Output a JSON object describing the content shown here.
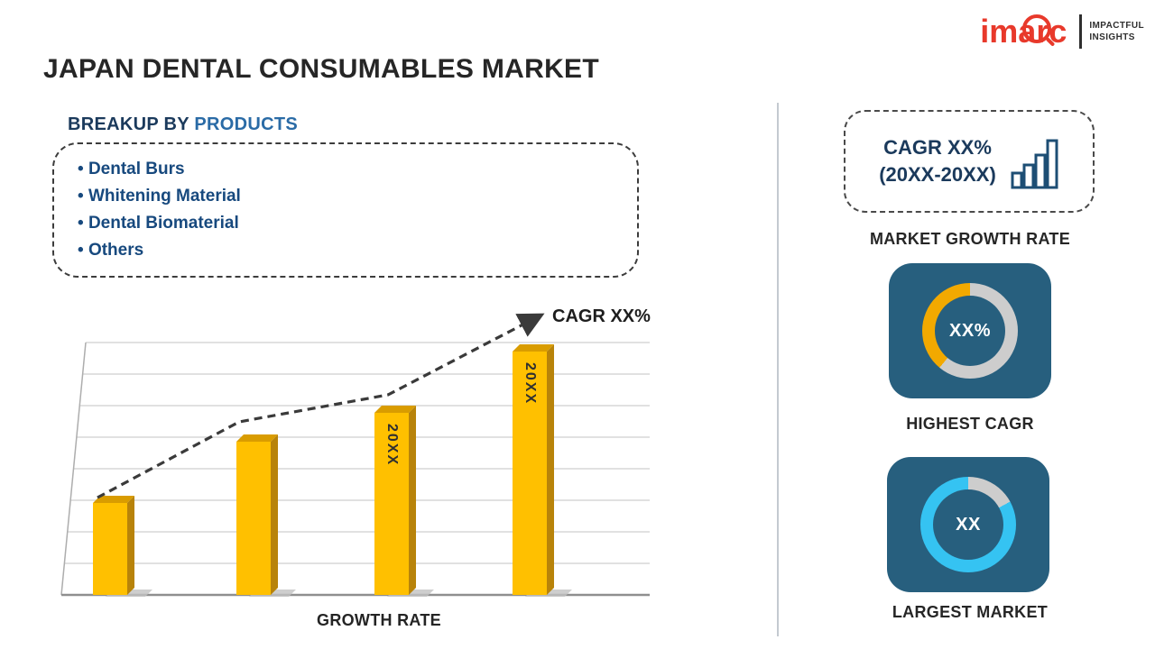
{
  "title": "JAPAN DENTAL CONSUMABLES MARKET",
  "logo": {
    "brand": "imarc",
    "tagline1": "IMPACTFUL",
    "tagline2": "INSIGHTS"
  },
  "breakup": {
    "heading_prefix": "BREAKUP BY",
    "heading_highlight": "PRODUCTS",
    "items": [
      "Dental Burs",
      "Whitening Material",
      "Dental Biomaterial",
      "Others"
    ]
  },
  "chart_data": {
    "type": "bar",
    "title": "",
    "categories": [
      "",
      "",
      "20XX",
      "20XX"
    ],
    "values": [
      36,
      60,
      71,
      95
    ],
    "ylim": [
      0,
      100
    ],
    "xlabel": "GROWTH RATE",
    "ylabel": "",
    "grid": true,
    "bar_color": "#FFC000",
    "trend": {
      "label": "CAGR XX%",
      "style": "dashed-arrow"
    }
  },
  "right_panel": {
    "cagr_box": {
      "line1": "CAGR XX%",
      "line2": "(20XX-20XX)",
      "icon": "bar-chart-icon"
    },
    "sections": [
      {
        "label": "MARKET GROWTH RATE"
      },
      {
        "label": "HIGHEST CAGR",
        "value": "XX%",
        "accent": "#F2A900",
        "gray_pct": 61
      },
      {
        "label": "LARGEST MARKET",
        "value": "XX",
        "accent": "#35C3F2",
        "gray_pct": 17
      }
    ]
  },
  "colors": {
    "navy_text": "#1B3A5C",
    "blue_highlight": "#2A6BA6",
    "list_blue": "#17497E",
    "bar_yellow": "#FFC000",
    "card_bg": "#275F7E",
    "donut_gray": "#CDCDCD",
    "imarc_red": "#E8392B"
  }
}
